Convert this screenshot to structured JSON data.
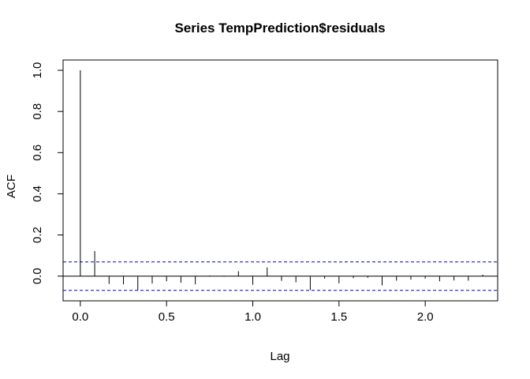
{
  "chart_data": {
    "type": "bar",
    "subtype": "acf",
    "title": "Series  TempPrediction$residuals",
    "xlabel": "Lag",
    "ylabel": "ACF",
    "xlim": [
      -0.1,
      2.42
    ],
    "ylim": [
      -0.12,
      1.05
    ],
    "xticks": [
      0.0,
      0.5,
      1.0,
      1.5,
      2.0
    ],
    "xtick_labels": [
      "0.0",
      "0.5",
      "1.0",
      "1.5",
      "2.0"
    ],
    "yticks": [
      0.0,
      0.2,
      0.4,
      0.6,
      0.8,
      1.0
    ],
    "ytick_labels": [
      "0.0",
      "0.2",
      "0.4",
      "0.6",
      "0.8",
      "1.0"
    ],
    "confidence_bound": 0.069,
    "zero_line": true,
    "colors": {
      "bars": "#000000",
      "confidence": "#0000cc",
      "frame": "#000000"
    },
    "series": [
      {
        "lag": [
          0.0,
          0.0833,
          0.1667,
          0.25,
          0.3333,
          0.4167,
          0.5,
          0.5833,
          0.6667,
          0.75,
          0.8333,
          0.9167,
          1.0,
          1.0833,
          1.1667,
          1.25,
          1.3333,
          1.4167,
          1.5,
          1.5833,
          1.6667,
          1.75,
          1.8333,
          1.9167,
          2.0,
          2.0833,
          2.1667,
          2.25,
          2.3333
        ],
        "acf": [
          1.0,
          0.122,
          -0.038,
          -0.04,
          -0.068,
          -0.036,
          -0.025,
          -0.032,
          -0.04,
          0.003,
          -0.003,
          0.024,
          -0.042,
          0.042,
          -0.023,
          -0.03,
          -0.068,
          -0.012,
          -0.035,
          -0.01,
          -0.008,
          -0.045,
          -0.022,
          -0.017,
          -0.012,
          -0.025,
          -0.021,
          -0.022,
          0.007
        ]
      }
    ]
  }
}
